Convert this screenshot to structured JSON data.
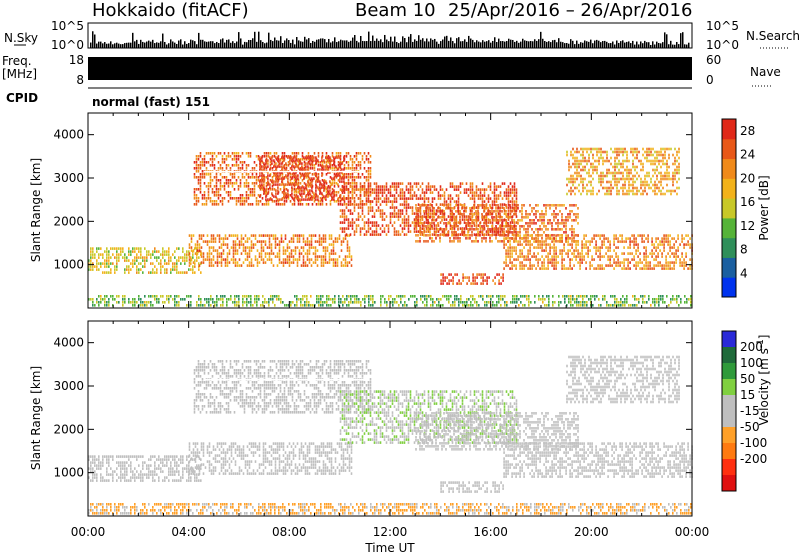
{
  "header": {
    "station": "Hokkaido (fitACF)",
    "beam": "Beam 10",
    "dates": "25/Apr/2016 – 26/Apr/2016"
  },
  "noise_panel": {
    "label_left": "N.Sky",
    "label_right": "N.Search",
    "left_ticks": [
      "10^5",
      "10^0"
    ],
    "right_ticks": [
      "10^5",
      "10^0"
    ]
  },
  "freq_panel": {
    "label_left_1": "Freq.",
    "label_left_2": "[MHz]",
    "label_right": "Nave",
    "left_ticks": [
      "18",
      "8"
    ],
    "right_ticks": [
      "60",
      "0"
    ]
  },
  "cpid_panel": {
    "label": "CPID",
    "mode": "normal (fast) 151"
  },
  "x_axis": {
    "label": "Time UT",
    "ticks": [
      "00:00",
      "04:00",
      "08:00",
      "12:00",
      "16:00",
      "20:00",
      "00:00"
    ]
  },
  "colors": {
    "power_scale": [
      "#0033ee",
      "#1a5fa0",
      "#2f8f5a",
      "#55b338",
      "#c8c828",
      "#f2b21a",
      "#f08a1a",
      "#e85818",
      "#e02818"
    ],
    "velocity_scale": [
      "#2a2ad8",
      "#1f6a3a",
      "#2f9a3a",
      "#80d040",
      "#bfbfbf",
      "#bfbfbf",
      "#ffa028",
      "#ff7a10",
      "#ff3010",
      "#e01010"
    ]
  },
  "chart_data": [
    {
      "type": "heatmap",
      "title": "",
      "xlabel": "Time UT",
      "ylabel": "Slant Range [km]",
      "xlim": [
        0,
        24
      ],
      "ylim": [
        0,
        4500
      ],
      "x_ticks": [
        "00:00",
        "04:00",
        "08:00",
        "12:00",
        "16:00",
        "20:00",
        "00:00"
      ],
      "y_ticks": [
        1000,
        2000,
        3000,
        4000
      ],
      "colorbar": {
        "label": "Power [dB]",
        "ticks": [
          4,
          8,
          12,
          16,
          20,
          24,
          28
        ],
        "range": [
          0,
          30
        ]
      },
      "regions": [
        {
          "t0": 0.0,
          "t1": 24.0,
          "r0": 80,
          "r1": 300,
          "value": 12
        },
        {
          "t0": 0.0,
          "t1": 4.5,
          "r0": 800,
          "r1": 1400,
          "value": 16
        },
        {
          "t0": 4.0,
          "t1": 10.5,
          "r0": 1000,
          "r1": 1700,
          "value": 22
        },
        {
          "t0": 4.2,
          "t1": 11.2,
          "r0": 2400,
          "r1": 3600,
          "value": 24
        },
        {
          "t0": 6.8,
          "t1": 10.2,
          "r0": 2500,
          "r1": 3500,
          "value": 28
        },
        {
          "t0": 10.0,
          "t1": 17.0,
          "r0": 1700,
          "r1": 2900,
          "value": 26
        },
        {
          "t0": 13.0,
          "t1": 19.5,
          "r0": 1500,
          "r1": 2400,
          "value": 24
        },
        {
          "t0": 16.5,
          "t1": 24.0,
          "r0": 900,
          "r1": 1700,
          "value": 22
        },
        {
          "t0": 19.0,
          "t1": 23.5,
          "r0": 2600,
          "r1": 3700,
          "value": 20
        },
        {
          "t0": 14.0,
          "t1": 16.5,
          "r0": 550,
          "r1": 800,
          "value": 26
        }
      ]
    },
    {
      "type": "heatmap",
      "title": "",
      "xlabel": "Time UT",
      "ylabel": "Slant Range [km]",
      "xlim": [
        0,
        24
      ],
      "ylim": [
        0,
        4500
      ],
      "x_ticks": [
        "00:00",
        "04:00",
        "08:00",
        "12:00",
        "16:00",
        "20:00",
        "00:00"
      ],
      "y_ticks": [
        1000,
        2000,
        3000,
        4000
      ],
      "colorbar": {
        "label": "Velocity [m s^-1]",
        "ticks": [
          200,
          100,
          50,
          15,
          -15,
          -50,
          -100,
          -200
        ],
        "range": [
          -250,
          250
        ]
      },
      "regions": [
        {
          "t0": 0.0,
          "t1": 24.0,
          "r0": 80,
          "r1": 300,
          "value": -60
        },
        {
          "t0": 0.0,
          "t1": 4.5,
          "r0": 800,
          "r1": 1400,
          "value": 0
        },
        {
          "t0": 4.0,
          "t1": 10.5,
          "r0": 1000,
          "r1": 1700,
          "value": 0
        },
        {
          "t0": 4.2,
          "t1": 11.2,
          "r0": 2400,
          "r1": 3600,
          "value": 0
        },
        {
          "t0": 10.0,
          "t1": 17.0,
          "r0": 1700,
          "r1": 2900,
          "value": 40
        },
        {
          "t0": 13.0,
          "t1": 19.5,
          "r0": 1500,
          "r1": 2400,
          "value": 20
        },
        {
          "t0": 16.5,
          "t1": 24.0,
          "r0": 900,
          "r1": 1700,
          "value": 0
        },
        {
          "t0": 19.0,
          "t1": 23.5,
          "r0": 2600,
          "r1": 3700,
          "value": 10
        },
        {
          "t0": 14.0,
          "t1": 16.5,
          "r0": 550,
          "r1": 800,
          "value": 0
        }
      ]
    }
  ]
}
